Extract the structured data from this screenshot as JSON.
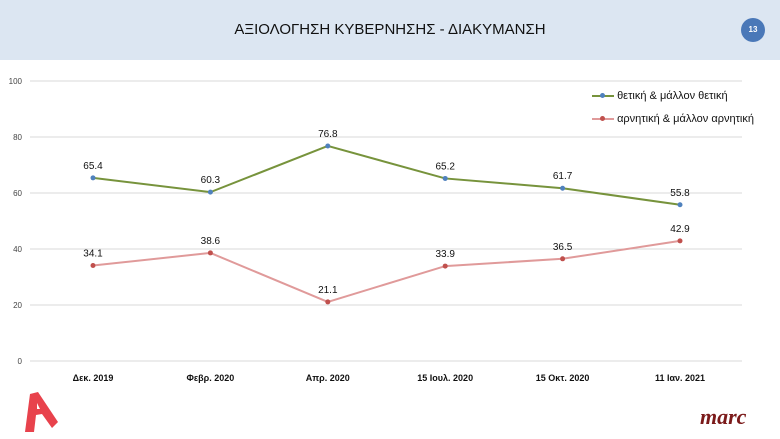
{
  "header": {
    "title": "ΑΞΙΟΛΟΓΗΣΗ ΚΥΒΕΡΝΗΣΗΣ - ΔΙΑΚΥΜΑΝΣΗ",
    "page_number": "13"
  },
  "logos": {
    "left": "A",
    "right": "marc"
  },
  "chart_data": {
    "type": "line",
    "title": "ΑΞΙΟΛΟΓΗΣΗ ΚΥΒΕΡΝΗΣΗΣ - ΔΙΑΚΥΜΑΝΣΗ",
    "categories": [
      "Δεκ. 2019",
      "Φεβρ. 2020",
      "Απρ. 2020",
      "15 Ιουλ. 2020",
      "15 Οκτ. 2020",
      "11 Ιαν. 2021"
    ],
    "ylim": [
      0,
      100
    ],
    "yticks": [
      "0",
      "20",
      "40",
      "60",
      "80",
      "100"
    ],
    "grid": true,
    "legend_position": "top-right",
    "series": [
      {
        "name": "θετική & μάλλον θετική",
        "values": [
          65.4,
          60.3,
          76.8,
          65.2,
          61.7,
          55.8
        ],
        "labels": [
          "65.4",
          "60.3",
          "76.8",
          "65.2",
          "61.7",
          "55.8"
        ],
        "color": "#77933c",
        "marker": "#4f81bd"
      },
      {
        "name": "αρνητική & μάλλον αρνητική",
        "values": [
          34.1,
          38.6,
          21.1,
          33.9,
          36.5,
          42.9
        ],
        "labels": [
          "34.1",
          "38.6",
          "21.1",
          "33.9",
          "36.5",
          "42.9"
        ],
        "color": "#e09a9a",
        "marker": "#c0504d"
      }
    ]
  }
}
